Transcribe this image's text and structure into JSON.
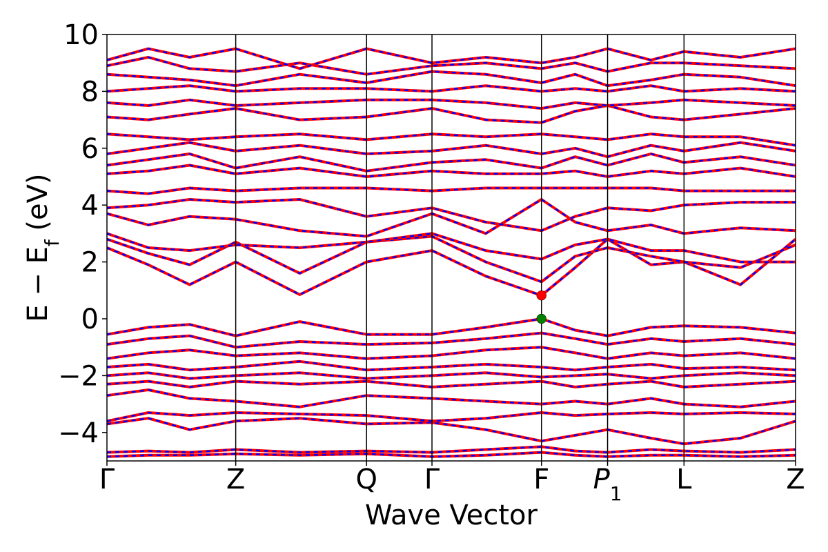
{
  "chart_data": {
    "type": "line",
    "title": "",
    "xlabel": "Wave Vector",
    "ylabel_main": "E − E",
    "ylabel_sub": "f",
    "ylabel_unit": " (eV)",
    "ylim": [
      -5,
      10
    ],
    "yticks": [
      10,
      8,
      6,
      4,
      2,
      0,
      -2,
      -4
    ],
    "ytick_labels": [
      "10",
      "8",
      "6",
      "4",
      "2",
      "0",
      "−2",
      "−4"
    ],
    "kpoints": [
      {
        "label": "Γ",
        "x": 0.0
      },
      {
        "label": "Z",
        "x": 0.187
      },
      {
        "label": "Q",
        "x": 0.377
      },
      {
        "label": "Γ",
        "x": 0.472
      },
      {
        "label": "F",
        "x": 0.631
      },
      {
        "label": "P",
        "sub": "1",
        "x": 0.727
      },
      {
        "label": "L",
        "x": 0.838
      },
      {
        "label": "Z",
        "x": 1.0
      }
    ],
    "band_styles": {
      "solid_color": "#ff0000",
      "dashed_color": "#0000ff"
    },
    "markers": [
      {
        "name": "CBM",
        "x": 0.631,
        "y": 0.82,
        "color": "#ff0000"
      },
      {
        "name": "VBM",
        "x": 0.631,
        "y": 0.0,
        "color": "#008000"
      }
    ],
    "bands": [
      {
        "x": [
          0,
          0.06,
          0.12,
          0.187,
          0.28,
          0.377,
          0.472,
          0.55,
          0.631,
          0.68,
          0.727,
          0.79,
          0.838,
          0.92,
          1.0
        ],
        "y": [
          -4.85,
          -4.8,
          -4.8,
          -4.75,
          -4.8,
          -4.75,
          -4.85,
          -4.8,
          -4.7,
          -4.8,
          -4.85,
          -4.8,
          -4.8,
          -4.85,
          -4.8
        ]
      },
      {
        "x": [
          0,
          0.06,
          0.12,
          0.187,
          0.28,
          0.377,
          0.472,
          0.55,
          0.631,
          0.68,
          0.727,
          0.79,
          0.838,
          0.92,
          1.0
        ],
        "y": [
          -4.7,
          -4.65,
          -4.7,
          -4.6,
          -4.7,
          -4.65,
          -4.7,
          -4.6,
          -4.5,
          -4.65,
          -4.7,
          -4.6,
          -4.65,
          -4.7,
          -4.6
        ]
      },
      {
        "x": [
          0,
          0.06,
          0.12,
          0.187,
          0.28,
          0.377,
          0.472,
          0.55,
          0.631,
          0.68,
          0.727,
          0.79,
          0.838,
          0.92,
          1.0
        ],
        "y": [
          -3.7,
          -3.5,
          -3.9,
          -3.6,
          -3.5,
          -3.7,
          -3.65,
          -3.9,
          -4.3,
          -4.1,
          -3.9,
          -4.2,
          -4.4,
          -4.2,
          -3.6
        ]
      },
      {
        "x": [
          0,
          0.06,
          0.12,
          0.187,
          0.28,
          0.377,
          0.472,
          0.55,
          0.631,
          0.68,
          0.727,
          0.79,
          0.838,
          0.92,
          1.0
        ],
        "y": [
          -3.6,
          -3.3,
          -3.4,
          -3.3,
          -3.35,
          -3.4,
          -3.6,
          -3.5,
          -3.3,
          -3.4,
          -3.35,
          -3.3,
          -3.35,
          -3.3,
          -3.35
        ]
      },
      {
        "x": [
          0,
          0.06,
          0.12,
          0.187,
          0.28,
          0.377,
          0.472,
          0.55,
          0.631,
          0.68,
          0.727,
          0.79,
          0.838,
          0.92,
          1.0
        ],
        "y": [
          -2.7,
          -2.5,
          -2.8,
          -2.9,
          -3.1,
          -2.7,
          -2.8,
          -2.9,
          -3.0,
          -2.9,
          -3.0,
          -2.8,
          -3.0,
          -3.1,
          -2.9
        ]
      },
      {
        "x": [
          0,
          0.06,
          0.12,
          0.187,
          0.28,
          0.377,
          0.472,
          0.55,
          0.631,
          0.68,
          0.727,
          0.79,
          0.838,
          0.92,
          1.0
        ],
        "y": [
          -2.3,
          -2.2,
          -2.4,
          -2.2,
          -2.3,
          -2.2,
          -2.4,
          -2.3,
          -2.2,
          -2.4,
          -2.3,
          -2.2,
          -2.4,
          -2.3,
          -2.2
        ]
      },
      {
        "x": [
          0,
          0.06,
          0.12,
          0.187,
          0.28,
          0.377,
          0.472,
          0.55,
          0.631,
          0.68,
          0.727,
          0.79,
          0.838,
          0.92,
          1.0
        ],
        "y": [
          -2.0,
          -1.9,
          -2.1,
          -2.0,
          -1.9,
          -2.1,
          -2.0,
          -1.9,
          -2.05,
          -2.0,
          -1.95,
          -2.1,
          -2.0,
          -1.9,
          -2.0
        ]
      },
      {
        "x": [
          0,
          0.06,
          0.12,
          0.187,
          0.28,
          0.377,
          0.472,
          0.55,
          0.631,
          0.68,
          0.727,
          0.79,
          0.838,
          0.92,
          1.0
        ],
        "y": [
          -1.7,
          -1.6,
          -1.8,
          -1.7,
          -1.5,
          -1.8,
          -1.7,
          -1.6,
          -1.7,
          -1.8,
          -1.7,
          -1.6,
          -1.75,
          -1.7,
          -1.8
        ]
      },
      {
        "x": [
          0,
          0.06,
          0.12,
          0.187,
          0.28,
          0.377,
          0.472,
          0.55,
          0.631,
          0.68,
          0.727,
          0.79,
          0.838,
          0.92,
          1.0
        ],
        "y": [
          -1.4,
          -1.2,
          -1.1,
          -1.3,
          -1.2,
          -1.4,
          -1.3,
          -1.1,
          -1.0,
          -1.2,
          -1.4,
          -1.2,
          -1.3,
          -1.2,
          -1.4
        ]
      },
      {
        "x": [
          0,
          0.06,
          0.12,
          0.187,
          0.28,
          0.377,
          0.472,
          0.55,
          0.631,
          0.68,
          0.727,
          0.79,
          0.838,
          0.92,
          1.0
        ],
        "y": [
          -0.9,
          -0.7,
          -0.6,
          -1.0,
          -0.8,
          -0.9,
          -0.85,
          -0.7,
          -0.5,
          -0.7,
          -0.9,
          -0.7,
          -0.8,
          -0.7,
          -0.9
        ]
      },
      {
        "x": [
          0,
          0.06,
          0.12,
          0.187,
          0.28,
          0.377,
          0.472,
          0.55,
          0.631,
          0.68,
          0.727,
          0.79,
          0.838,
          0.92,
          1.0
        ],
        "y": [
          -0.55,
          -0.3,
          -0.2,
          -0.6,
          -0.1,
          -0.55,
          -0.55,
          -0.3,
          0.0,
          -0.4,
          -0.6,
          -0.3,
          -0.25,
          -0.3,
          -0.5
        ]
      },
      {
        "x": [
          0,
          0.06,
          0.12,
          0.187,
          0.28,
          0.377,
          0.472,
          0.55,
          0.631,
          0.68,
          0.727,
          0.79,
          0.838,
          0.92,
          1.0
        ],
        "y": [
          2.5,
          1.9,
          1.2,
          2.0,
          0.85,
          2.0,
          2.4,
          1.5,
          0.82,
          1.8,
          2.8,
          1.9,
          2.0,
          1.2,
          2.8
        ]
      },
      {
        "x": [
          0,
          0.06,
          0.12,
          0.187,
          0.28,
          0.377,
          0.472,
          0.55,
          0.631,
          0.68,
          0.727,
          0.79,
          0.838,
          0.92,
          1.0
        ],
        "y": [
          2.8,
          2.3,
          1.9,
          2.7,
          1.6,
          2.7,
          2.9,
          2.0,
          1.3,
          2.2,
          2.5,
          2.2,
          2.0,
          1.8,
          2.6
        ]
      },
      {
        "x": [
          0,
          0.06,
          0.12,
          0.187,
          0.28,
          0.377,
          0.472,
          0.55,
          0.631,
          0.68,
          0.727,
          0.79,
          0.838,
          0.92,
          1.0
        ],
        "y": [
          3.0,
          2.5,
          2.4,
          2.6,
          2.5,
          2.7,
          3.0,
          2.4,
          2.1,
          2.6,
          2.8,
          2.4,
          2.4,
          2.0,
          2.0
        ]
      },
      {
        "x": [
          0,
          0.06,
          0.12,
          0.187,
          0.28,
          0.377,
          0.472,
          0.55,
          0.631,
          0.68,
          0.727,
          0.79,
          0.838,
          0.92,
          1.0
        ],
        "y": [
          3.7,
          3.3,
          3.6,
          3.5,
          3.1,
          2.9,
          3.7,
          3.0,
          4.2,
          3.4,
          3.1,
          3.3,
          3.0,
          3.2,
          3.1
        ]
      },
      {
        "x": [
          0,
          0.06,
          0.12,
          0.187,
          0.28,
          0.377,
          0.472,
          0.55,
          0.631,
          0.68,
          0.727,
          0.79,
          0.838,
          0.92,
          1.0
        ],
        "y": [
          3.9,
          4.0,
          4.2,
          4.1,
          4.2,
          3.6,
          3.9,
          3.4,
          3.1,
          3.6,
          3.9,
          3.8,
          4.0,
          4.1,
          4.1
        ]
      },
      {
        "x": [
          0,
          0.06,
          0.12,
          0.187,
          0.28,
          0.377,
          0.472,
          0.55,
          0.631,
          0.68,
          0.727,
          0.79,
          0.838,
          0.92,
          1.0
        ],
        "y": [
          4.5,
          4.4,
          4.6,
          4.5,
          4.6,
          4.6,
          4.5,
          4.6,
          4.6,
          4.6,
          4.6,
          4.6,
          4.5,
          4.5,
          4.5
        ]
      },
      {
        "x": [
          0,
          0.06,
          0.12,
          0.187,
          0.28,
          0.377,
          0.472,
          0.55,
          0.631,
          0.68,
          0.727,
          0.79,
          0.838,
          0.92,
          1.0
        ],
        "y": [
          5.1,
          5.2,
          5.4,
          5.1,
          5.3,
          5.0,
          5.2,
          5.1,
          5.1,
          5.2,
          5.0,
          5.2,
          5.1,
          5.3,
          5.0
        ]
      },
      {
        "x": [
          0,
          0.06,
          0.12,
          0.187,
          0.28,
          0.377,
          0.472,
          0.55,
          0.631,
          0.68,
          0.727,
          0.79,
          0.838,
          0.92,
          1.0
        ],
        "y": [
          5.4,
          5.6,
          5.8,
          5.3,
          5.7,
          5.2,
          5.5,
          5.6,
          5.3,
          5.7,
          5.4,
          5.8,
          5.5,
          5.7,
          5.4
        ]
      },
      {
        "x": [
          0,
          0.06,
          0.12,
          0.187,
          0.28,
          0.377,
          0.472,
          0.55,
          0.631,
          0.68,
          0.727,
          0.79,
          0.838,
          0.92,
          1.0
        ],
        "y": [
          5.8,
          6.0,
          6.2,
          5.9,
          6.1,
          5.8,
          5.9,
          6.1,
          5.8,
          6.0,
          5.7,
          6.1,
          5.9,
          6.2,
          5.9
        ]
      },
      {
        "x": [
          0,
          0.06,
          0.12,
          0.187,
          0.28,
          0.377,
          0.472,
          0.55,
          0.631,
          0.68,
          0.727,
          0.79,
          0.838,
          0.92,
          1.0
        ],
        "y": [
          6.5,
          6.4,
          6.3,
          6.4,
          6.5,
          6.3,
          6.5,
          6.4,
          6.5,
          6.4,
          6.3,
          6.5,
          6.4,
          6.4,
          6.1
        ]
      },
      {
        "x": [
          0,
          0.06,
          0.12,
          0.187,
          0.28,
          0.377,
          0.472,
          0.55,
          0.631,
          0.68,
          0.727,
          0.79,
          0.838,
          0.92,
          1.0
        ],
        "y": [
          7.1,
          7.0,
          7.2,
          7.4,
          7.0,
          7.1,
          7.4,
          7.0,
          6.9,
          7.3,
          7.5,
          7.1,
          7.0,
          7.2,
          7.4
        ]
      },
      {
        "x": [
          0,
          0.06,
          0.12,
          0.187,
          0.28,
          0.377,
          0.472,
          0.55,
          0.631,
          0.68,
          0.727,
          0.79,
          0.838,
          0.92,
          1.0
        ],
        "y": [
          7.6,
          7.5,
          7.7,
          7.5,
          7.6,
          7.7,
          7.7,
          7.6,
          7.4,
          7.6,
          7.5,
          7.6,
          7.7,
          7.6,
          7.5
        ]
      },
      {
        "x": [
          0,
          0.06,
          0.12,
          0.187,
          0.28,
          0.377,
          0.472,
          0.55,
          0.631,
          0.68,
          0.727,
          0.79,
          0.838,
          0.92,
          1.0
        ],
        "y": [
          8.0,
          8.1,
          8.2,
          8.0,
          8.1,
          8.1,
          8.0,
          8.2,
          8.0,
          8.1,
          8.0,
          8.2,
          8.0,
          8.1,
          8.0
        ]
      },
      {
        "x": [
          0,
          0.06,
          0.12,
          0.187,
          0.28,
          0.377,
          0.472,
          0.55,
          0.631,
          0.68,
          0.727,
          0.79,
          0.838,
          0.92,
          1.0
        ],
        "y": [
          8.6,
          8.5,
          8.4,
          8.2,
          8.6,
          8.3,
          8.7,
          8.6,
          8.3,
          8.6,
          8.2,
          8.4,
          8.6,
          8.5,
          8.2
        ]
      },
      {
        "x": [
          0,
          0.06,
          0.12,
          0.187,
          0.28,
          0.377,
          0.472,
          0.55,
          0.631,
          0.68,
          0.727,
          0.79,
          0.838,
          0.92,
          1.0
        ],
        "y": [
          8.9,
          9.2,
          8.8,
          8.7,
          9.0,
          8.6,
          8.9,
          9.0,
          8.8,
          9.0,
          8.7,
          9.0,
          9.0,
          8.9,
          8.8
        ]
      },
      {
        "x": [
          0,
          0.06,
          0.12,
          0.187,
          0.28,
          0.377,
          0.472,
          0.55,
          0.631,
          0.68,
          0.727,
          0.79,
          0.838,
          0.92,
          1.0
        ],
        "y": [
          9.1,
          9.5,
          9.2,
          9.5,
          8.8,
          9.5,
          9.0,
          9.2,
          9.0,
          9.2,
          9.5,
          9.1,
          9.4,
          9.2,
          9.5
        ]
      }
    ]
  }
}
